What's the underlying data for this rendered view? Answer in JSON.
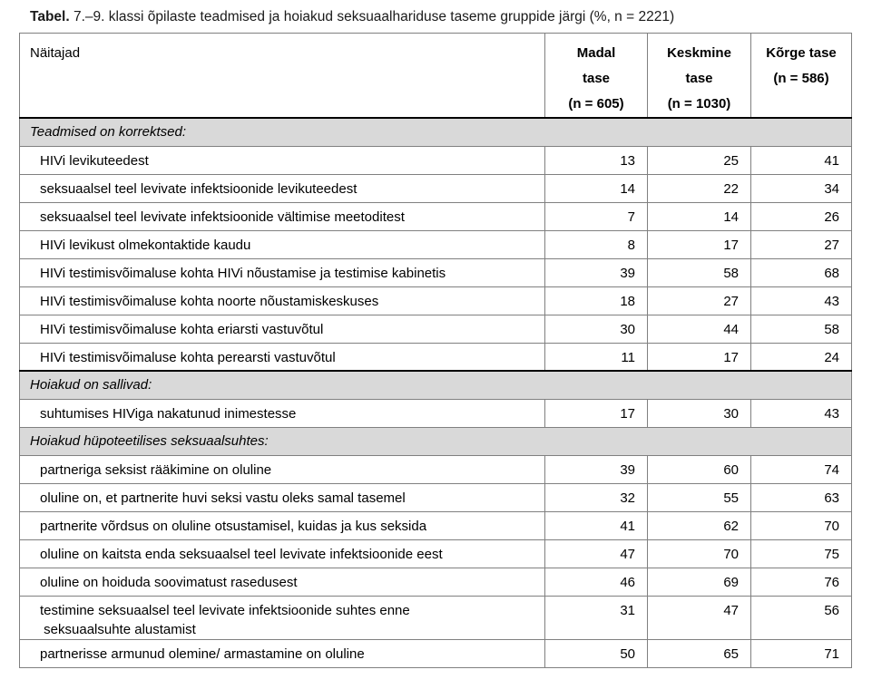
{
  "title": {
    "label_bold": "Tabel.",
    "label_rest": "7.–9. klassi õpilaste teadmised ja hoiakud seksuaalhariduse taseme gruppide järgi (%, n = 2221)"
  },
  "colors": {
    "section_bg": "#d9d9d9",
    "grid_border": "#808080",
    "heavy_border": "#000000"
  },
  "table": {
    "columns": {
      "label": "Näitajad",
      "low": "Madal\ntase\n(n = 605)",
      "mid": "Keskmine\ntase\n(n = 1030)",
      "high": "Kõrge tase\n(n = 586)"
    },
    "sections": [
      {
        "heading": "Teadmised on korrektsed:",
        "rows": [
          {
            "label": "HIVi levikuteedest",
            "values": [
              13,
              25,
              41
            ]
          },
          {
            "label": "seksuaalsel teel levivate infektsioonide levikuteedest",
            "values": [
              14,
              22,
              34
            ]
          },
          {
            "label": "seksuaalsel teel levivate infektsioonide vältimise meetoditest",
            "values": [
              7,
              14,
              26
            ]
          },
          {
            "label": "HIVi levikust olmekontaktide kaudu",
            "values": [
              8,
              17,
              27
            ]
          },
          {
            "label": "HIVi testimisvõimaluse kohta HIVi nõustamise ja testimise kabinetis",
            "values": [
              39,
              58,
              68
            ]
          },
          {
            "label": "HIVi testimisvõimaluse kohta noorte nõustamiskeskuses",
            "values": [
              18,
              27,
              43
            ]
          },
          {
            "label": "HIVi testimisvõimaluse kohta eriarsti vastuvõtul",
            "values": [
              30,
              44,
              58
            ]
          },
          {
            "label": "HIVi testimisvõimaluse kohta perearsti vastuvõtul",
            "values": [
              11,
              17,
              24
            ]
          }
        ]
      },
      {
        "heading": "Hoiakud on sallivad:",
        "rows": [
          {
            "label": "suhtumises HIViga nakatunud inimestesse",
            "values": [
              17,
              30,
              43
            ]
          }
        ]
      },
      {
        "heading": "Hoiakud hüpoteetilises seksuaalsuhtes:",
        "rows": [
          {
            "label": "partneriga seksist rääkimine on oluline",
            "values": [
              39,
              60,
              74
            ]
          },
          {
            "label": "oluline on, et partnerite huvi seksi vastu oleks samal tasemel",
            "values": [
              32,
              55,
              63
            ]
          },
          {
            "label": "partnerite võrdsus on oluline otsustamisel, kuidas ja kus seksida",
            "values": [
              41,
              62,
              70
            ]
          },
          {
            "label": "oluline on kaitsta enda seksuaalsel teel levivate infektsioonide eest",
            "values": [
              47,
              70,
              75
            ]
          },
          {
            "label": "oluline on hoiduda soovimatust rasedusest",
            "values": [
              46,
              69,
              76
            ]
          },
          {
            "label": "testimine seksuaalsel teel levivate infektsioonide suhtes enne\n seksuaalsuhte alustamist",
            "values": [
              31,
              47,
              56
            ]
          },
          {
            "label": "partnerisse armunud olemine/ armastamine on oluline",
            "values": [
              50,
              65,
              71
            ]
          }
        ]
      }
    ]
  }
}
